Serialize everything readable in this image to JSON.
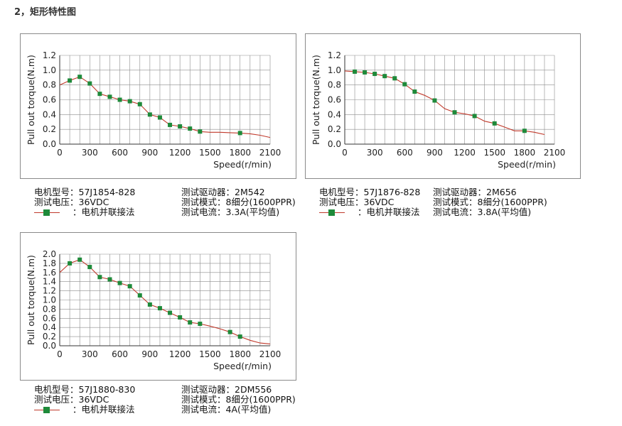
{
  "page_title": "2，矩形特性图",
  "chart_data": [
    {
      "type": "line",
      "ylabel": "Pull out torque(N.m)",
      "xlabel": "Speed(r/min)",
      "x_ticks": [
        0,
        300,
        600,
        900,
        1200,
        1500,
        1800,
        2100
      ],
      "y_ticks": [
        0,
        0.2,
        0.4,
        0.6,
        0.8,
        1.0,
        1.2
      ],
      "xlim": [
        0,
        2100
      ],
      "ylim": [
        0,
        1.2
      ],
      "grid": true,
      "curve": {
        "x": [
          0,
          100,
          200,
          300,
          400,
          500,
          600,
          700,
          800,
          900,
          1000,
          1100,
          1200,
          1300,
          1400,
          1500,
          1600,
          1700,
          1800,
          1900,
          2000,
          2100
        ],
        "y": [
          0.8,
          0.86,
          0.91,
          0.82,
          0.68,
          0.64,
          0.6,
          0.58,
          0.54,
          0.4,
          0.36,
          0.26,
          0.24,
          0.21,
          0.17,
          0.16,
          0.16,
          0.155,
          0.15,
          0.14,
          0.12,
          0.09
        ]
      },
      "markers": {
        "x": [
          100,
          200,
          300,
          400,
          500,
          600,
          700,
          800,
          900,
          1000,
          1100,
          1200,
          1300,
          1400,
          1800
        ],
        "y": [
          0.86,
          0.91,
          0.82,
          0.68,
          0.64,
          0.6,
          0.58,
          0.54,
          0.4,
          0.36,
          0.26,
          0.24,
          0.21,
          0.17,
          0.15
        ]
      }
    },
    {
      "type": "line",
      "ylabel": "Pull out torque(N.m)",
      "xlabel": "Speed(r/min)",
      "x_ticks": [
        0,
        300,
        600,
        900,
        1200,
        1500,
        1800,
        2100
      ],
      "y_ticks": [
        0,
        0.2,
        0.4,
        0.6,
        0.8,
        1.0,
        1.2
      ],
      "xlim": [
        0,
        2100
      ],
      "ylim": [
        0,
        1.2
      ],
      "grid": true,
      "curve": {
        "x": [
          0,
          100,
          200,
          300,
          400,
          500,
          600,
          700,
          800,
          900,
          1000,
          1100,
          1200,
          1300,
          1400,
          1500,
          1600,
          1700,
          1800,
          1900,
          2000
        ],
        "y": [
          0.99,
          0.98,
          0.97,
          0.95,
          0.92,
          0.89,
          0.81,
          0.71,
          0.66,
          0.59,
          0.48,
          0.43,
          0.41,
          0.38,
          0.31,
          0.28,
          0.23,
          0.18,
          0.18,
          0.16,
          0.13
        ]
      },
      "markers": {
        "x": [
          100,
          200,
          300,
          400,
          500,
          600,
          700,
          900,
          1100,
          1300,
          1500,
          1800
        ],
        "y": [
          0.98,
          0.97,
          0.95,
          0.92,
          0.89,
          0.81,
          0.71,
          0.59,
          0.43,
          0.38,
          0.28,
          0.18
        ]
      }
    },
    {
      "type": "line",
      "ylabel": "Pull out torque(N.m)",
      "xlabel": "Speed(r/min)",
      "x_ticks": [
        0,
        300,
        600,
        900,
        1200,
        1500,
        1800,
        2100
      ],
      "y_ticks": [
        0,
        0.2,
        0.4,
        0.6,
        0.8,
        1.0,
        1.2,
        1.4,
        1.6,
        1.8,
        2.0
      ],
      "xlim": [
        0,
        2100
      ],
      "ylim": [
        0,
        2.0
      ],
      "grid": true,
      "curve": {
        "x": [
          0,
          100,
          200,
          300,
          400,
          500,
          600,
          700,
          800,
          900,
          1000,
          1100,
          1200,
          1300,
          1400,
          1500,
          1600,
          1700,
          1800,
          1900,
          2000,
          2100
        ],
        "y": [
          1.6,
          1.8,
          1.88,
          1.72,
          1.5,
          1.45,
          1.37,
          1.3,
          1.1,
          0.9,
          0.82,
          0.72,
          0.62,
          0.51,
          0.48,
          0.43,
          0.37,
          0.3,
          0.2,
          0.12,
          0.06,
          0.04
        ]
      },
      "markers": {
        "x": [
          100,
          200,
          300,
          400,
          500,
          600,
          700,
          800,
          900,
          1000,
          1100,
          1200,
          1300,
          1400,
          1700,
          1800
        ],
        "y": [
          1.8,
          1.88,
          1.72,
          1.5,
          1.45,
          1.37,
          1.3,
          1.1,
          0.9,
          0.82,
          0.72,
          0.62,
          0.51,
          0.48,
          0.3,
          0.2
        ]
      }
    }
  ],
  "specs": [
    {
      "model": "电机型号：57J1854-828",
      "driver": "测试驱动器：2M542",
      "voltage": "测试电压：36VDC",
      "mode": "测试模式：8细分(1600PPR)",
      "legend": "：电机并联接法",
      "current": "测试电流：3.3A(平均值)"
    },
    {
      "model": "电机型号：57J1876-828",
      "driver": "测试驱动器：2M656",
      "voltage": "测试电压：36VDC",
      "mode": "测试模式：8细分(1600PPR)",
      "legend": "：电机并联接法",
      "current": "测试电流：3.8A(平均值)"
    },
    {
      "model": "电机型号：57J1880-830",
      "driver": "测试驱动器：2DM556",
      "voltage": "测试电压：36VDC",
      "mode": "测试模式：8细分(1600PPR)",
      "legend": "：电机并联接法",
      "current": "测试电流：4A(平均值)"
    }
  ],
  "colors": {
    "curve": "#c0392b",
    "marker": "#1e8a3a",
    "grid": "#8c8c8c"
  }
}
